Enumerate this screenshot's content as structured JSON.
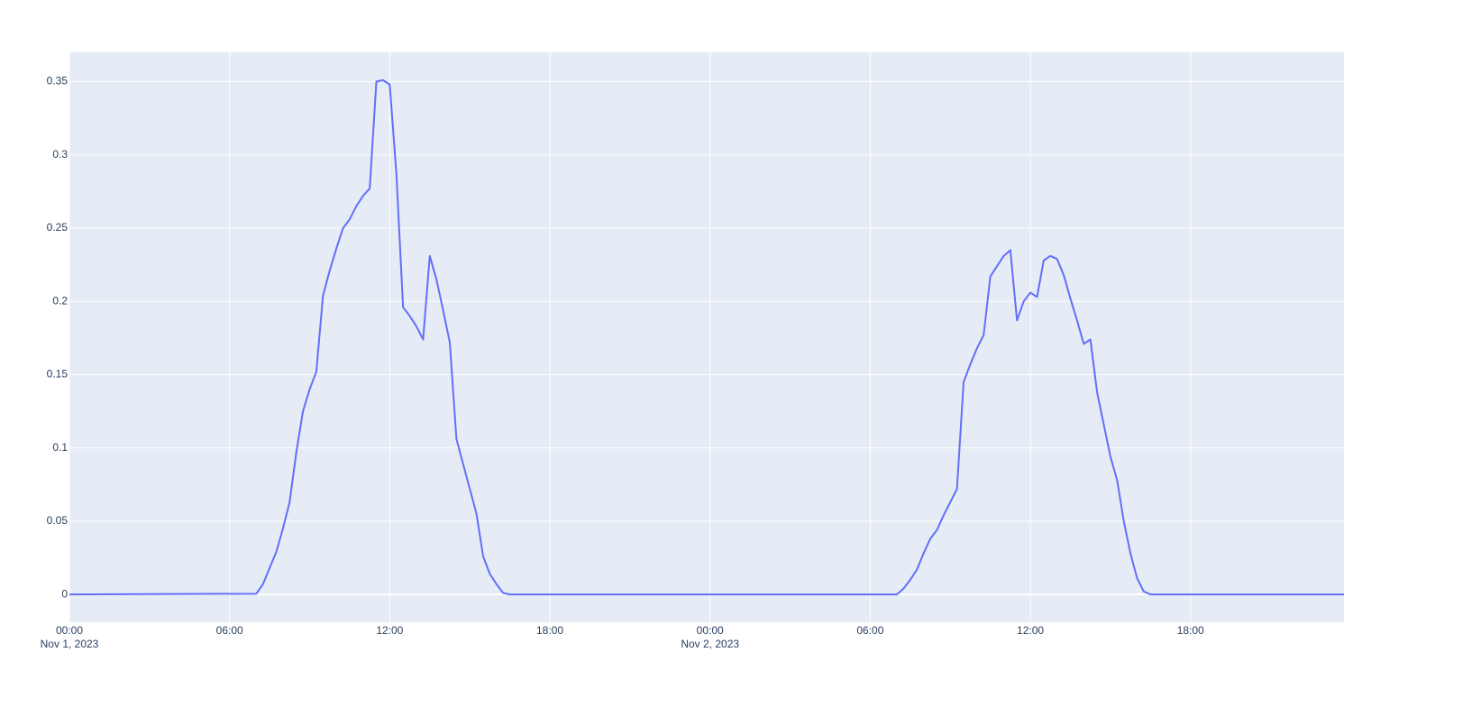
{
  "chart_data": {
    "type": "line",
    "color": "#636efa",
    "grid": true,
    "x": [
      "2023-11-01 00:00",
      "2023-11-01 07:00",
      "2023-11-01 07:15",
      "2023-11-01 07:30",
      "2023-11-01 07:45",
      "2023-11-01 08:00",
      "2023-11-01 08:15",
      "2023-11-01 08:30",
      "2023-11-01 08:45",
      "2023-11-01 09:00",
      "2023-11-01 09:15",
      "2023-11-01 09:30",
      "2023-11-01 09:45",
      "2023-11-01 10:00",
      "2023-11-01 10:15",
      "2023-11-01 10:30",
      "2023-11-01 10:45",
      "2023-11-01 11:00",
      "2023-11-01 11:15",
      "2023-11-01 11:30",
      "2023-11-01 11:45",
      "2023-11-01 12:00",
      "2023-11-01 12:15",
      "2023-11-01 12:30",
      "2023-11-01 12:45",
      "2023-11-01 13:00",
      "2023-11-01 13:15",
      "2023-11-01 13:30",
      "2023-11-01 13:45",
      "2023-11-01 14:00",
      "2023-11-01 14:15",
      "2023-11-01 14:30",
      "2023-11-01 14:45",
      "2023-11-01 15:00",
      "2023-11-01 15:15",
      "2023-11-01 15:30",
      "2023-11-01 15:45",
      "2023-11-01 16:00",
      "2023-11-01 16:15",
      "2023-11-01 16:30",
      "2023-11-02 07:00",
      "2023-11-02 07:15",
      "2023-11-02 07:30",
      "2023-11-02 07:45",
      "2023-11-02 08:00",
      "2023-11-02 08:15",
      "2023-11-02 08:30",
      "2023-11-02 08:45",
      "2023-11-02 09:00",
      "2023-11-02 09:15",
      "2023-11-02 09:30",
      "2023-11-02 09:45",
      "2023-11-02 10:00",
      "2023-11-02 10:15",
      "2023-11-02 10:30",
      "2023-11-02 10:45",
      "2023-11-02 11:00",
      "2023-11-02 11:15",
      "2023-11-02 11:30",
      "2023-11-02 11:45",
      "2023-11-02 12:00",
      "2023-11-02 12:15",
      "2023-11-02 12:30",
      "2023-11-02 12:45",
      "2023-11-02 13:00",
      "2023-11-02 13:15",
      "2023-11-02 13:30",
      "2023-11-02 13:45",
      "2023-11-02 14:00",
      "2023-11-02 14:15",
      "2023-11-02 14:30",
      "2023-11-02 14:45",
      "2023-11-02 15:00",
      "2023-11-02 15:15",
      "2023-11-02 15:30",
      "2023-11-02 15:45",
      "2023-11-02 16:00",
      "2023-11-02 16:15",
      "2023-11-02 16:30",
      "2023-11-02 23:45"
    ],
    "values": [
      0,
      0.0005,
      0.007,
      0.018,
      0.029,
      0.045,
      0.063,
      0.097,
      0.125,
      0.14,
      0.152,
      0.204,
      0.221,
      0.236,
      0.25,
      0.256,
      0.265,
      0.272,
      0.277,
      0.35,
      0.351,
      0.348,
      0.287,
      0.196,
      0.19,
      0.183,
      0.174,
      0.231,
      0.215,
      0.194,
      0.172,
      0.106,
      0.089,
      0.072,
      0.055,
      0.026,
      0.014,
      0.007,
      0.001,
      0,
      0,
      0.004,
      0.01,
      0.017,
      0.028,
      0.038,
      0.044,
      0.054,
      0.063,
      0.072,
      0.145,
      0.157,
      0.168,
      0.177,
      0.217,
      0.224,
      0.231,
      0.235,
      0.187,
      0.2,
      0.206,
      0.203,
      0.228,
      0.231,
      0.229,
      0.218,
      0.202,
      0.187,
      0.171,
      0.174,
      0.138,
      0.116,
      0.094,
      0.078,
      0.05,
      0.028,
      0.011,
      0.002,
      0,
      0
    ],
    "xlim": [
      "2023-11-01 00:00",
      "2023-11-02 23:45"
    ],
    "xticks": [
      {
        "value": "2023-11-01 00:00",
        "label": "00:00"
      },
      {
        "value": "2023-11-01 06:00",
        "label": "06:00"
      },
      {
        "value": "2023-11-01 12:00",
        "label": "12:00"
      },
      {
        "value": "2023-11-01 18:00",
        "label": "18:00"
      },
      {
        "value": "2023-11-02 00:00",
        "label": "00:00"
      },
      {
        "value": "2023-11-02 06:00",
        "label": "06:00"
      },
      {
        "value": "2023-11-02 12:00",
        "label": "12:00"
      },
      {
        "value": "2023-11-02 18:00",
        "label": "18:00"
      }
    ],
    "x_tick_dates": [
      {
        "value": "2023-11-01 00:00",
        "label": "Nov 1, 2023"
      },
      {
        "value": "2023-11-02 00:00",
        "label": "Nov 2, 2023"
      }
    ],
    "ylim": [
      -0.019,
      0.37
    ],
    "yticks": [
      0,
      0.05,
      0.1,
      0.15,
      0.2,
      0.25,
      0.3,
      0.35
    ]
  }
}
